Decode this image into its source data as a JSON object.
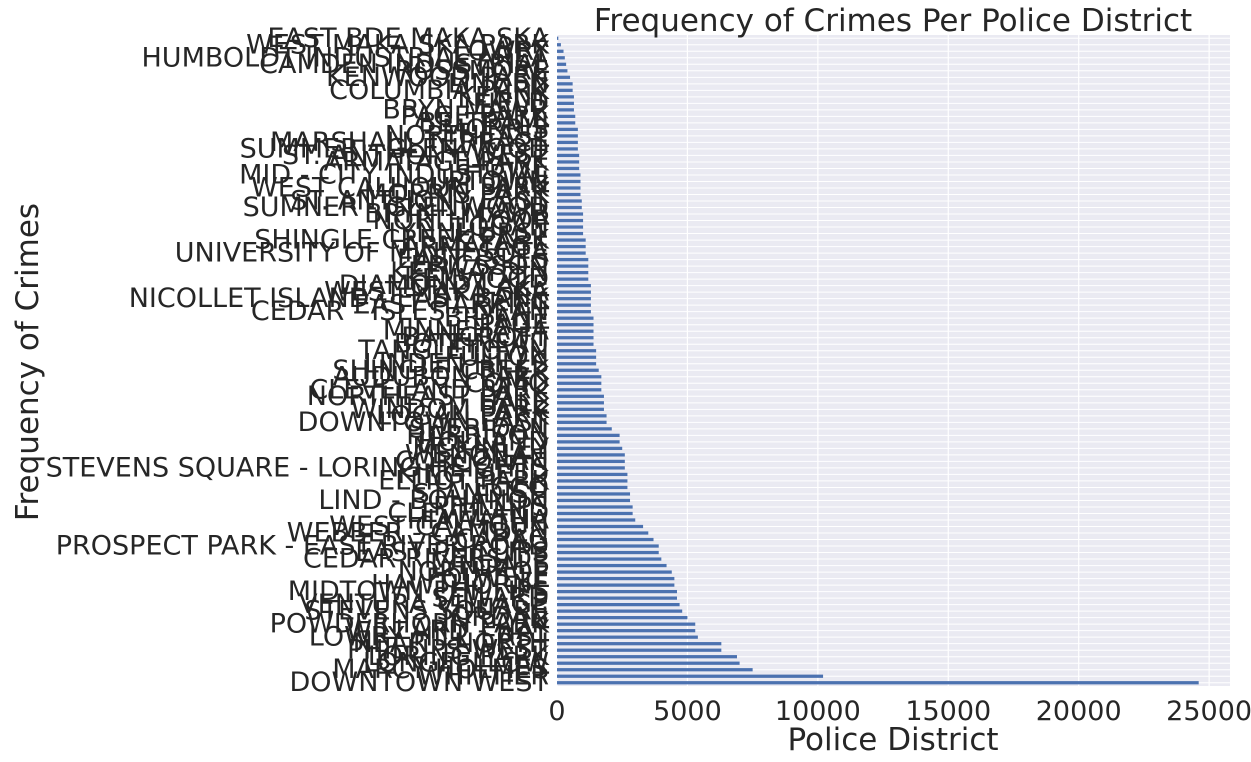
{
  "chart_data": {
    "type": "bar",
    "orientation": "horizontal",
    "title": "Frequency of Crimes Per Police District",
    "xlabel": "Police District",
    "ylabel": "Frequency of Crimes",
    "xlim": [
      0,
      25800
    ],
    "xticks": [
      0,
      5000,
      10000,
      15000,
      20000,
      25000
    ],
    "grid": true,
    "colors": {
      "bar": "#4c72b0",
      "plot_bg": "#eaeaf2",
      "grid": "#ffffff",
      "text": "#262626"
    },
    "categories": [
      "DOWNTOWN WEST",
      "WHITTIER",
      "MARCY HOLMES",
      "LONGFELLOW",
      "LORING PARK",
      "PHILLIPS WEST",
      "NEAR - NORTH",
      "LOWRY HILL EAST",
      "WILLARD - HAY",
      "POWDERHORN PARK",
      "JORDAN",
      "STEVENS SQUARE",
      "VENTURA VILLAGE",
      "SEWARD",
      "MIDTOWN PHILLIPS",
      "HAWTHORNE",
      "FOLWELL",
      "NORTHROP",
      "LYNDALE",
      "CEDAR RIVERSIDE",
      "EAST PHILLIPS",
      "PROSPECT PARK - EAST RIVER ROAD",
      "CARAG",
      "WEBBER - CAMDEN",
      "WEST CALHOUN",
      "HIAWATHA",
      "CLEVELAND",
      "PHILLIPS",
      "LIND - BOHANON",
      "STANDISH",
      "ECCO",
      "ELLIOT PARK",
      "KING FIELD",
      "STEVENS SQUARE - LORING HEIGHTS",
      "CORCORAN",
      "WENONAH",
      "MCKINLEY",
      "HOLLAND",
      "HARRISON",
      "SHERIDAN",
      "DOWNTOWN EAST",
      "LOGAN PARK",
      "WINDOM PARK",
      "HALE",
      "NORTHEAST PARK",
      "CLEVELAND PARK",
      "COMO",
      "AUDUBON PARK",
      "SHINGLE CREEK",
      "LINDEN HILLS",
      "FULTON",
      "TANGLETOWN",
      "BOTTINEAU",
      "BANCROFT",
      "MINNEHAHA",
      "PAGE",
      "BRYANT",
      "CEDAR - ISLES - DEAN",
      "EAST HARRIET",
      "NICOLLET ISLAND - EAST BANK",
      "WEST MAKA SKA",
      "DIAMOND LAKE",
      "KENWOOD",
      "KEEWAYDIN",
      "ERICSSON",
      "EAST ISLES",
      "UNIVERSITY OF MINNESOTA",
      "ARMATAGE",
      "SHINGLE CREEK PARK",
      "LYNNHURST",
      "LOGAN",
      "NORTH LOOP",
      "BRYN - MAWR",
      "SUMNER - GLENWOOD",
      "ST. ANTHONY EAST",
      "MORRIS PARK",
      "WEST CALHOUN PARK",
      "UPTOWN",
      "MID - CITY INDUSTRIAL",
      "HOWE",
      "ARMATAGE PARK",
      "ST. ANTHONY WEST",
      "SUMMER - GLENWOOD",
      "MARSHALL TERRACE",
      "NORTHEAST",
      "MORRIS",
      "BELTRAMI",
      "PAGE PARK",
      "BRYN MAWR",
      "FIELD",
      "KENNY",
      "COLUMBIA PARK",
      "LINDEN",
      "KENWOOD PARK",
      "ROSSMORE",
      "CAMDEN INDUSTRIAL",
      "HUMBOLDT INDUSTRIAL AREA",
      "LOWRY",
      "WEST MAKA SKA PARK",
      "EAST BDE MAKA SKA"
    ],
    "values": [
      24600,
      10200,
      7500,
      7000,
      6900,
      6300,
      6300,
      5400,
      5300,
      5300,
      5000,
      4800,
      4700,
      4600,
      4600,
      4500,
      4500,
      4400,
      4200,
      4000,
      3900,
      3900,
      3700,
      3500,
      3300,
      3000,
      2900,
      2900,
      2800,
      2800,
      2700,
      2700,
      2700,
      2600,
      2600,
      2600,
      2500,
      2400,
      2400,
      2100,
      1900,
      1900,
      1800,
      1800,
      1800,
      1700,
      1700,
      1700,
      1600,
      1500,
      1500,
      1500,
      1400,
      1400,
      1400,
      1400,
      1400,
      1300,
      1300,
      1300,
      1300,
      1300,
      1200,
      1200,
      1200,
      1200,
      1100,
      1100,
      1100,
      1000,
      1000,
      1000,
      1000,
      950,
      950,
      900,
      900,
      900,
      900,
      850,
      850,
      850,
      800,
      800,
      800,
      800,
      700,
      700,
      650,
      650,
      650,
      600,
      600,
      500,
      400,
      350,
      300,
      250,
      150,
      50
    ]
  }
}
